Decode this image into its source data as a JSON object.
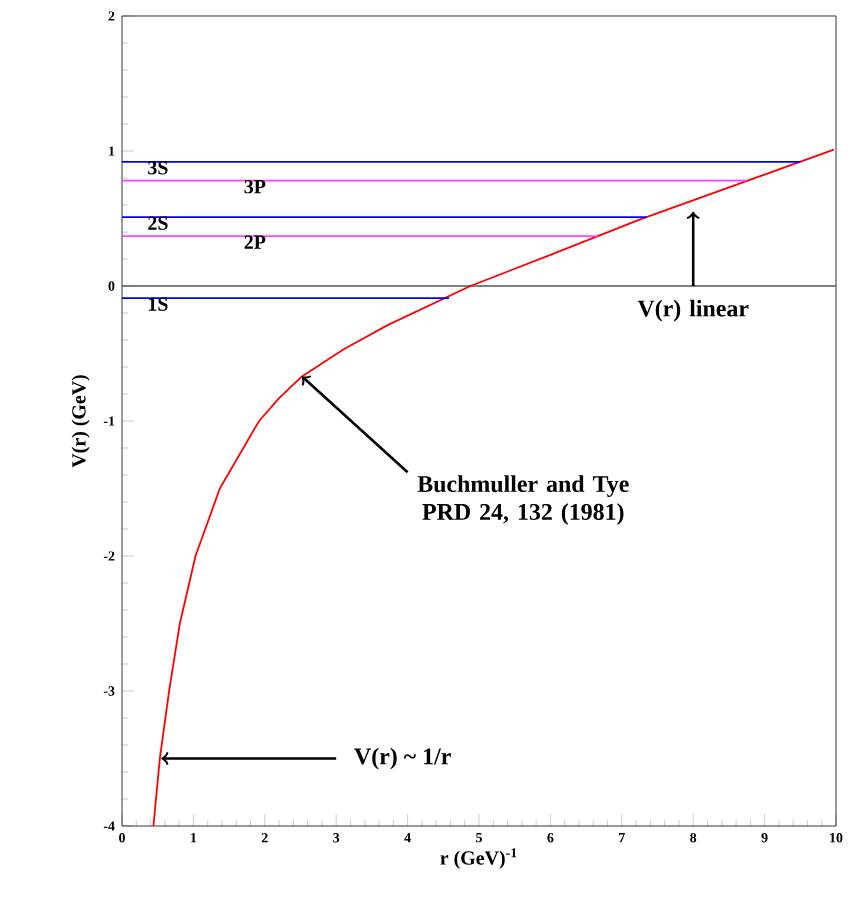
{
  "chart_data": {
    "type": "line",
    "xlabel": "r (GeV)$^{-1}$",
    "ylabel": "V(r) (GeV)",
    "xlim": [
      0,
      10
    ],
    "ylim": [
      -4,
      2
    ],
    "xticks": [
      0,
      1,
      2,
      3,
      4,
      5,
      6,
      7,
      8,
      9,
      10
    ],
    "yticks": [
      -4,
      -3,
      -2,
      -1,
      0,
      1,
      2
    ],
    "marker": "none",
    "line_style": "solid",
    "series": [
      {
        "color": "#ff0000",
        "x": [
          0.44,
          0.53,
          0.66,
          0.81,
          1.03,
          1.37,
          1.92,
          2.2,
          2.52,
          3.1,
          3.72,
          4.88,
          6,
          7.24,
          9.97
        ],
        "values": [
          -4,
          -3.5,
          -3,
          -2.5,
          -2,
          -1.5,
          -1,
          -0.83,
          -0.67,
          -0.47,
          -0.29,
          0,
          0.23,
          0.49,
          1.01
        ]
      },
      {
        "name": "3S",
        "color": "#0000ff",
        "x": [
          0,
          9.5
        ],
        "values": [
          0.92,
          0.92
        ]
      },
      {
        "name": "3P",
        "color": "#ff44ff",
        "x": [
          0,
          8.74
        ],
        "values": [
          0.78,
          0.78
        ]
      },
      {
        "name": "2S",
        "color": "#0000ff",
        "x": [
          0,
          7.35
        ],
        "values": [
          0.51,
          0.51
        ]
      },
      {
        "name": "2P",
        "color": "#ff44ff",
        "x": [
          0,
          6.66
        ],
        "values": [
          0.37,
          0.37
        ]
      },
      {
        "name": "1S",
        "color": "#0000ff",
        "x": [
          0,
          4.58
        ],
        "values": [
          -0.09,
          -0.09
        ]
      }
    ],
    "ref_lines": [
      {
        "axis": "y",
        "value": 0,
        "color": "#555555"
      }
    ],
    "annotations": [
      {
        "text": "V(r) linear",
        "x": 8,
        "y": 0.55
      },
      {
        "text": "Buchmuller and Tye PRD 24, 132 (1981)",
        "x": 2.52,
        "y": -0.67
      },
      {
        "text": "V(r) ~ 1/r",
        "x": 0.55,
        "y": -3.5
      }
    ]
  }
}
